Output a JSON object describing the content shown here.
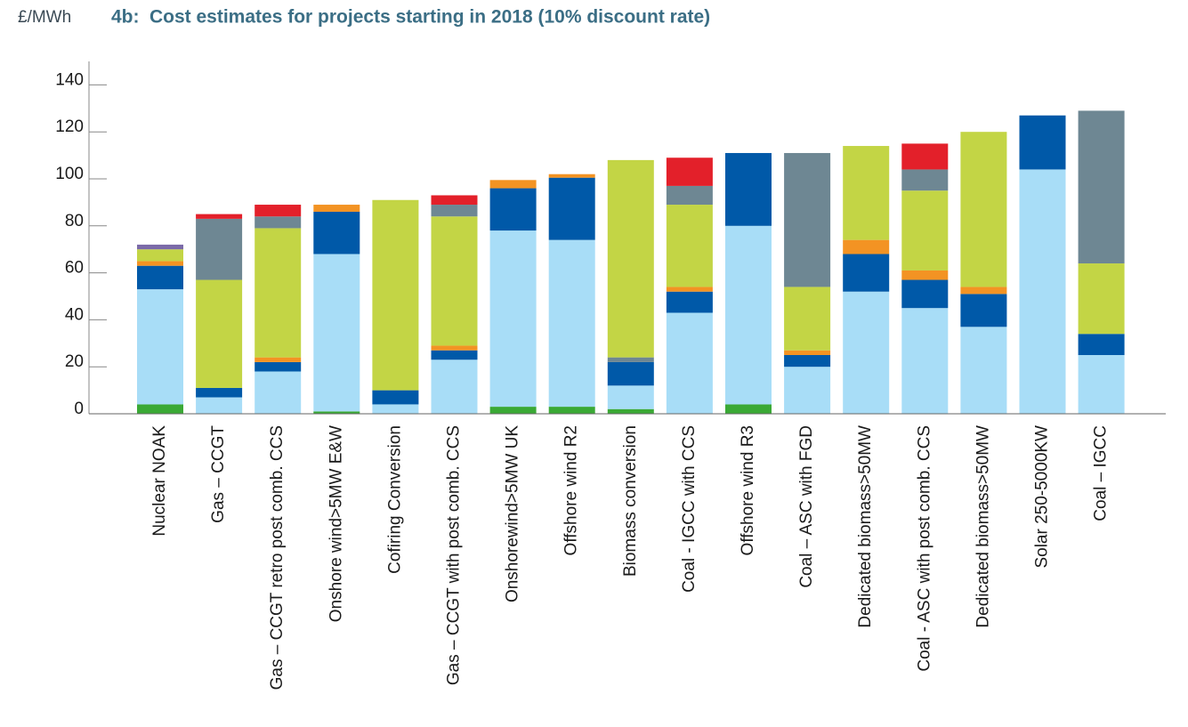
{
  "chart_data": {
    "type": "stacked_bar",
    "unit_label": "£/MWh",
    "title_prefix": "4b:",
    "title": "Cost estimates for projects starting in 2018 (10% discount rate)",
    "categories": [
      "Nuclear NOAK",
      "Gas – CCGT",
      "Gas – CCGT retro post comb. CCS",
      "Onshore wind>5MW E&W",
      "Cofiring Conversion",
      "Gas – CCGT with post comb. CCS",
      "Onshorewind>5MW UK",
      "Offshore wind R2",
      "Biomass conversion",
      "Coal - IGCC with CCS",
      "Offshore wind R3",
      "Coal – ASC with FGD",
      "Dedicated biomass>50MW",
      "Coal - ASC with post comb. CCS",
      "Dedicated biomass>50MW",
      "Solar 250-5000KW",
      "Coal – IGCC"
    ],
    "series": [
      {
        "color": "#3aa935",
        "values": [
          4,
          0,
          0,
          1,
          0,
          0,
          3,
          3,
          2,
          0,
          4,
          0,
          0,
          0,
          0,
          0,
          0
        ]
      },
      {
        "color": "#a8ddf7",
        "values": [
          49,
          7,
          18,
          67,
          4,
          23,
          75,
          71,
          10,
          43,
          76,
          20,
          52,
          45,
          37,
          104,
          25
        ]
      },
      {
        "color": "#0059a8",
        "values": [
          10,
          4,
          4,
          18,
          6,
          4,
          18,
          26.5,
          10,
          9,
          31,
          5,
          16,
          12,
          14,
          23,
          9
        ]
      },
      {
        "color": "#f39323",
        "values": [
          2,
          0,
          2,
          3,
          0,
          2,
          3.5,
          1.5,
          0,
          2,
          0,
          2,
          6,
          4,
          3,
          0,
          0
        ]
      },
      {
        "color": "#6e8793",
        "values": [
          0,
          0,
          0,
          0,
          0,
          0,
          0,
          0,
          2,
          0,
          0,
          0,
          0,
          0,
          0,
          0,
          0
        ]
      },
      {
        "color": "#c3d545",
        "values": [
          5,
          46,
          55,
          0,
          81,
          55,
          0,
          0,
          84,
          35,
          0,
          27,
          40,
          34,
          66,
          0,
          30
        ]
      },
      {
        "color": "#6e8793",
        "values": [
          0,
          26,
          5,
          0,
          0,
          5,
          0,
          0,
          0,
          8,
          0,
          57,
          0,
          9,
          0,
          0,
          65
        ]
      },
      {
        "color": "#e3202a",
        "values": [
          0,
          2,
          5,
          0,
          0,
          4,
          0,
          0,
          0,
          12,
          0,
          0,
          0,
          11,
          0,
          0,
          0
        ]
      },
      {
        "color": "#7b6aa8",
        "values": [
          2,
          0,
          0,
          0,
          0,
          0,
          0,
          0,
          0,
          0,
          0,
          0,
          0,
          0,
          0,
          0,
          0
        ]
      }
    ],
    "ylim": [
      0,
      150
    ],
    "yticks": [
      0,
      20,
      40,
      60,
      80,
      100,
      120,
      140
    ]
  }
}
